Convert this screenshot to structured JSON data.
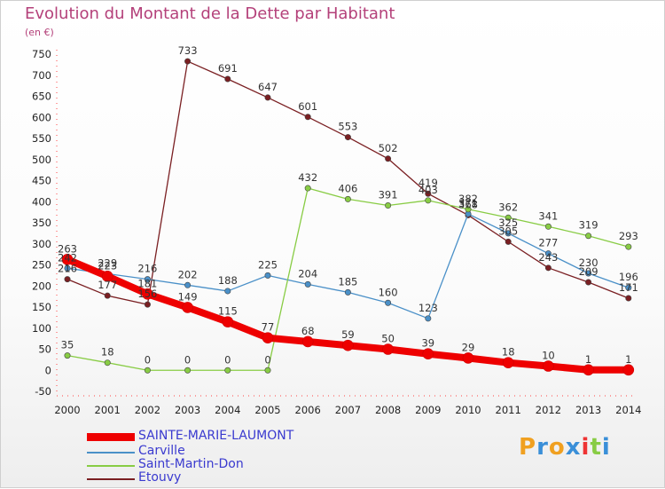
{
  "chart_data": {
    "type": "line",
    "title": "Evolution du Montant de la Dette par Habitant",
    "unit_label": "(en €)",
    "x": [
      "2000",
      "2001",
      "2002",
      "2003",
      "2004",
      "2005",
      "2006",
      "2007",
      "2008",
      "2009",
      "2010",
      "2011",
      "2012",
      "2013",
      "2014"
    ],
    "yticks": [
      750,
      700,
      650,
      600,
      550,
      500,
      450,
      400,
      350,
      300,
      250,
      200,
      150,
      100,
      50,
      0,
      -50
    ],
    "ylim": [
      -50,
      750
    ],
    "grid": false,
    "legend_position": "bottom-left",
    "series": [
      {
        "name": "Etouvy",
        "color": "#7a1f22",
        "values": [
          216,
          177,
          156,
          733,
          691,
          647,
          601,
          553,
          502,
          419,
          368,
          305,
          243,
          209,
          171
        ]
      },
      {
        "name": "Carville",
        "color": "#4a90c8",
        "values": [
          242,
          229,
          216,
          202,
          188,
          225,
          204,
          185,
          160,
          123,
          371,
          325,
          277,
          230,
          196
        ]
      },
      {
        "name": "Saint-Martin-Don",
        "color": "#88cc44",
        "values": [
          35,
          18,
          0,
          0,
          0,
          0,
          432,
          406,
          391,
          403,
          382,
          362,
          341,
          319,
          293
        ]
      },
      {
        "name": "SAINTE-MARIE-LAUMONT",
        "color": "#ee0000",
        "values": [
          263,
          223,
          181,
          149,
          115,
          77,
          68,
          59,
          50,
          39,
          29,
          18,
          10,
          1,
          1
        ]
      }
    ],
    "legend": [
      "SAINTE-MARIE-LAUMONT",
      "Carville",
      "Saint-Martin-Don",
      "Etouvy"
    ]
  },
  "logo": {
    "text": "Proxiti"
  }
}
